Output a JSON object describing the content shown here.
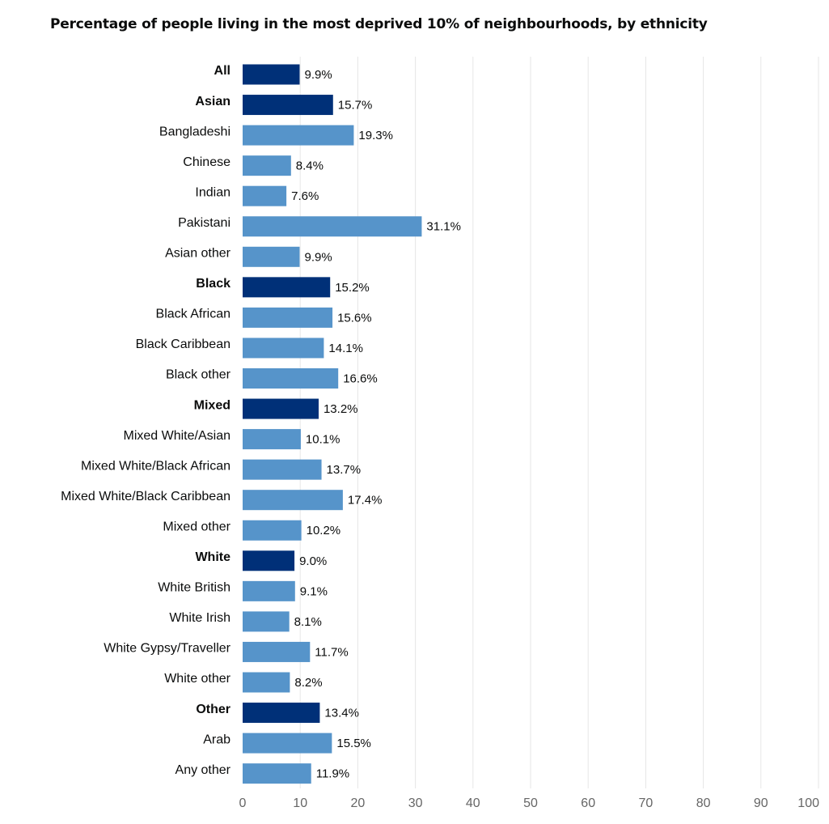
{
  "chart_data": {
    "type": "bar",
    "orientation": "horizontal",
    "title": "Percentage of people living in the most deprived 10% of neighbourhoods, by ethnicity",
    "xlim": [
      0,
      100
    ],
    "x_ticks": [
      "0",
      "10",
      "20",
      "30",
      "40",
      "50",
      "60",
      "70",
      "80",
      "90",
      "100"
    ],
    "grid": true,
    "value_suffix": "%",
    "colors": {
      "group": "#003078",
      "subgroup": "#5694ca"
    },
    "categories": [
      "All",
      "Asian",
      "Bangladeshi",
      "Chinese",
      "Indian",
      "Pakistani",
      "Asian other",
      "Black",
      "Black African",
      "Black Caribbean",
      "Black other",
      "Mixed",
      "Mixed White/Asian",
      "Mixed White/Black African",
      "Mixed White/Black Caribbean",
      "Mixed other",
      "White",
      "White British",
      "White Irish",
      "White Gypsy/Traveller",
      "White other",
      "Other",
      "Arab",
      "Any other"
    ],
    "values": [
      9.9,
      15.7,
      19.3,
      8.4,
      7.6,
      31.1,
      9.9,
      15.2,
      15.6,
      14.1,
      16.6,
      13.2,
      10.1,
      13.7,
      17.4,
      10.2,
      9.0,
      9.1,
      8.1,
      11.7,
      8.2,
      13.4,
      15.5,
      11.9
    ],
    "value_labels": [
      "9.9%",
      "15.7%",
      "19.3%",
      "8.4%",
      "7.6%",
      "31.1%",
      "9.9%",
      "15.2%",
      "15.6%",
      "14.1%",
      "16.6%",
      "13.2%",
      "10.1%",
      "13.7%",
      "17.4%",
      "10.2%",
      "9.0%",
      "9.1%",
      "8.1%",
      "11.7%",
      "8.2%",
      "13.4%",
      "15.5%",
      "11.9%"
    ],
    "is_group": [
      true,
      true,
      false,
      false,
      false,
      false,
      false,
      true,
      false,
      false,
      false,
      true,
      false,
      false,
      false,
      false,
      true,
      false,
      false,
      false,
      false,
      true,
      false,
      false
    ]
  }
}
